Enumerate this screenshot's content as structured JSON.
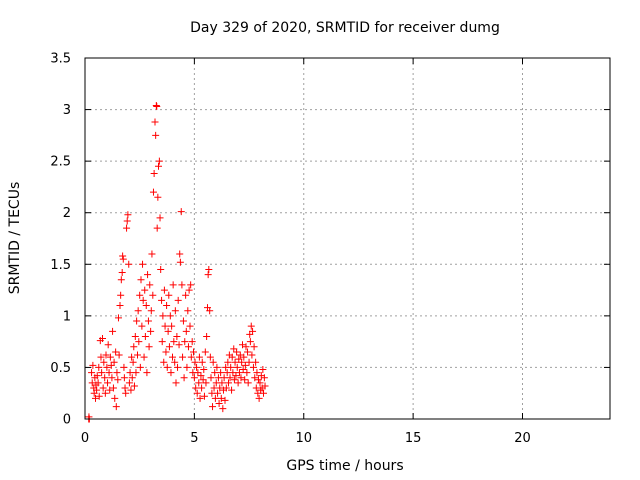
{
  "chart_data": {
    "type": "scatter",
    "title": "Day 329 of 2020, SRMTID for receiver dumg",
    "xlabel": "GPS time / hours",
    "ylabel": "SRMTID / TECUs",
    "xlim": [
      0,
      24
    ],
    "ylim": [
      0,
      3.5
    ],
    "xticks": [
      0,
      5,
      10,
      15,
      20
    ],
    "xtick_labels": [
      "0",
      "5",
      "10",
      "15",
      "20"
    ],
    "yticks": [
      0,
      0.5,
      1,
      1.5,
      2,
      2.5,
      3,
      3.5
    ],
    "ytick_labels": [
      "0",
      "0.5",
      "1",
      "1.5",
      "2",
      "2.5",
      "3",
      "3.5"
    ],
    "grid": true,
    "marker": "+",
    "colors": {
      "series": "#ff0000",
      "grid": "#a0a0a0",
      "axis": "#000000"
    },
    "series": [
      {
        "name": "SRMTID",
        "points": [
          [
            0.17,
            0.0
          ],
          [
            0.18,
            0.02
          ],
          [
            0.2,
            0.0
          ],
          [
            0.3,
            0.45
          ],
          [
            0.33,
            0.35
          ],
          [
            0.36,
            0.52
          ],
          [
            0.4,
            0.3
          ],
          [
            0.42,
            0.25
          ],
          [
            0.45,
            0.4
          ],
          [
            0.48,
            0.2
          ],
          [
            0.5,
            0.33
          ],
          [
            0.53,
            0.28
          ],
          [
            0.56,
            0.42
          ],
          [
            0.6,
            0.35
          ],
          [
            0.63,
            0.5
          ],
          [
            0.65,
            0.22
          ],
          [
            0.7,
            0.76
          ],
          [
            0.73,
            0.6
          ],
          [
            0.76,
            0.45
          ],
          [
            0.8,
            0.78
          ],
          [
            0.83,
            0.3
          ],
          [
            0.86,
            0.55
          ],
          [
            0.9,
            0.4
          ],
          [
            0.93,
            0.25
          ],
          [
            0.96,
            0.62
          ],
          [
            1.0,
            0.5
          ],
          [
            1.03,
            0.35
          ],
          [
            1.06,
            0.72
          ],
          [
            1.1,
            0.45
          ],
          [
            1.13,
            0.28
          ],
          [
            1.16,
            0.6
          ],
          [
            1.2,
            0.52
          ],
          [
            1.23,
            0.4
          ],
          [
            1.26,
            0.85
          ],
          [
            1.3,
            0.3
          ],
          [
            1.33,
            0.55
          ],
          [
            1.36,
            0.2
          ],
          [
            1.4,
            0.65
          ],
          [
            1.43,
            0.12
          ],
          [
            1.46,
            0.45
          ],
          [
            1.5,
            0.38
          ],
          [
            1.53,
            0.98
          ],
          [
            1.56,
            0.62
          ],
          [
            1.6,
            1.1
          ],
          [
            1.63,
            1.2
          ],
          [
            1.66,
            1.35
          ],
          [
            1.7,
            1.42
          ],
          [
            1.72,
            1.58
          ],
          [
            1.75,
            1.55
          ],
          [
            1.78,
            0.5
          ],
          [
            1.8,
            0.4
          ],
          [
            1.83,
            0.3
          ],
          [
            1.86,
            0.25
          ],
          [
            1.9,
            1.85
          ],
          [
            1.93,
            1.92
          ],
          [
            1.96,
            1.98
          ],
          [
            2.0,
            1.5
          ],
          [
            2.03,
            0.35
          ],
          [
            2.06,
            0.45
          ],
          [
            2.1,
            0.28
          ],
          [
            2.13,
            0.6
          ],
          [
            2.16,
            0.4
          ],
          [
            2.2,
            0.55
          ],
          [
            2.23,
            0.7
          ],
          [
            2.26,
            0.32
          ],
          [
            2.3,
            0.8
          ],
          [
            2.33,
            0.45
          ],
          [
            2.36,
            0.95
          ],
          [
            2.4,
            0.62
          ],
          [
            2.43,
            1.05
          ],
          [
            2.46,
            0.75
          ],
          [
            2.5,
            1.2
          ],
          [
            2.53,
            0.5
          ],
          [
            2.56,
            1.35
          ],
          [
            2.6,
            0.9
          ],
          [
            2.63,
            1.5
          ],
          [
            2.66,
            1.15
          ],
          [
            2.7,
            0.6
          ],
          [
            2.73,
            1.25
          ],
          [
            2.76,
            0.8
          ],
          [
            2.8,
            1.1
          ],
          [
            2.83,
            0.45
          ],
          [
            2.86,
            1.4
          ],
          [
            2.9,
            0.95
          ],
          [
            2.93,
            0.7
          ],
          [
            2.96,
            1.3
          ],
          [
            3.0,
            0.85
          ],
          [
            3.03,
            1.05
          ],
          [
            3.06,
            1.6
          ],
          [
            3.1,
            1.2
          ],
          [
            3.13,
            2.2
          ],
          [
            3.16,
            2.38
          ],
          [
            3.2,
            2.88
          ],
          [
            3.23,
            2.75
          ],
          [
            3.26,
            3.04
          ],
          [
            3.28,
            3.03
          ],
          [
            3.3,
            1.85
          ],
          [
            3.33,
            2.15
          ],
          [
            3.36,
            2.45
          ],
          [
            3.4,
            2.5
          ],
          [
            3.43,
            1.95
          ],
          [
            3.46,
            1.45
          ],
          [
            3.5,
            1.15
          ],
          [
            3.53,
            0.75
          ],
          [
            3.56,
            1.0
          ],
          [
            3.6,
            0.55
          ],
          [
            3.63,
            1.25
          ],
          [
            3.66,
            0.9
          ],
          [
            3.7,
            0.65
          ],
          [
            3.73,
            1.1
          ],
          [
            3.76,
            0.5
          ],
          [
            3.8,
            0.85
          ],
          [
            3.83,
            1.2
          ],
          [
            3.86,
            0.7
          ],
          [
            3.9,
            1.0
          ],
          [
            3.93,
            0.45
          ],
          [
            3.96,
            0.9
          ],
          [
            4.0,
            0.6
          ],
          [
            4.03,
            1.3
          ],
          [
            4.06,
            0.75
          ],
          [
            4.1,
            0.55
          ],
          [
            4.13,
            1.05
          ],
          [
            4.16,
            0.35
          ],
          [
            4.2,
            0.8
          ],
          [
            4.23,
            0.5
          ],
          [
            4.26,
            1.15
          ],
          [
            4.3,
            0.72
          ],
          [
            4.33,
            1.6
          ],
          [
            4.36,
            1.52
          ],
          [
            4.4,
            2.01
          ],
          [
            4.43,
            1.3
          ],
          [
            4.46,
            0.6
          ],
          [
            4.5,
            0.95
          ],
          [
            4.53,
            0.4
          ],
          [
            4.56,
            0.75
          ],
          [
            4.6,
            1.2
          ],
          [
            4.63,
            0.85
          ],
          [
            4.66,
            0.5
          ],
          [
            4.7,
            1.05
          ],
          [
            4.73,
            0.7
          ],
          [
            4.76,
            1.25
          ],
          [
            4.8,
            0.9
          ],
          [
            4.83,
            1.3
          ],
          [
            4.86,
            0.6
          ],
          [
            4.9,
            0.75
          ],
          [
            4.93,
            0.45
          ],
          [
            4.96,
            0.65
          ],
          [
            5.0,
            0.4
          ],
          [
            5.03,
            0.55
          ],
          [
            5.06,
            0.3
          ],
          [
            5.1,
            0.5
          ],
          [
            5.13,
            0.25
          ],
          [
            5.16,
            0.45
          ],
          [
            5.2,
            0.35
          ],
          [
            5.23,
            0.6
          ],
          [
            5.26,
            0.2
          ],
          [
            5.3,
            0.42
          ],
          [
            5.33,
            0.3
          ],
          [
            5.36,
            0.55
          ],
          [
            5.4,
            0.38
          ],
          [
            5.43,
            0.48
          ],
          [
            5.46,
            0.22
          ],
          [
            5.5,
            0.65
          ],
          [
            5.53,
            0.35
          ],
          [
            5.56,
            0.8
          ],
          [
            5.6,
            1.08
          ],
          [
            5.63,
            1.4
          ],
          [
            5.66,
            1.45
          ],
          [
            5.7,
            1.05
          ],
          [
            5.73,
            0.6
          ],
          [
            5.76,
            0.4
          ],
          [
            5.8,
            0.25
          ],
          [
            5.83,
            0.12
          ],
          [
            5.86,
            0.55
          ],
          [
            5.9,
            0.3
          ],
          [
            5.93,
            0.45
          ],
          [
            5.96,
            0.2
          ],
          [
            6.0,
            0.35
          ],
          [
            6.03,
            0.5
          ],
          [
            6.06,
            0.25
          ],
          [
            6.1,
            0.4
          ],
          [
            6.13,
            0.15
          ],
          [
            6.16,
            0.3
          ],
          [
            6.2,
            0.45
          ],
          [
            6.23,
            0.2
          ],
          [
            6.26,
            0.35
          ],
          [
            6.3,
            0.1
          ],
          [
            6.33,
            0.28
          ],
          [
            6.36,
            0.4
          ],
          [
            6.4,
            0.18
          ],
          [
            6.43,
            0.5
          ],
          [
            6.46,
            0.3
          ],
          [
            6.5,
            0.45
          ],
          [
            6.53,
            0.55
          ],
          [
            6.56,
            0.35
          ],
          [
            6.6,
            0.62
          ],
          [
            6.63,
            0.4
          ],
          [
            6.66,
            0.5
          ],
          [
            6.7,
            0.28
          ],
          [
            6.73,
            0.6
          ],
          [
            6.76,
            0.45
          ],
          [
            6.8,
            0.68
          ],
          [
            6.83,
            0.38
          ],
          [
            6.86,
            0.55
          ],
          [
            6.9,
            0.42
          ],
          [
            6.93,
            0.65
          ],
          [
            6.96,
            0.5
          ],
          [
            7.0,
            0.35
          ],
          [
            7.03,
            0.58
          ],
          [
            7.06,
            0.45
          ],
          [
            7.1,
            0.62
          ],
          [
            7.13,
            0.4
          ],
          [
            7.16,
            0.55
          ],
          [
            7.2,
            0.72
          ],
          [
            7.23,
            0.48
          ],
          [
            7.26,
            0.6
          ],
          [
            7.3,
            0.38
          ],
          [
            7.33,
            0.52
          ],
          [
            7.36,
            0.7
          ],
          [
            7.4,
            0.45
          ],
          [
            7.43,
            0.65
          ],
          [
            7.46,
            0.35
          ],
          [
            7.5,
            0.55
          ],
          [
            7.53,
            0.82
          ],
          [
            7.56,
            0.75
          ],
          [
            7.6,
            0.9
          ],
          [
            7.63,
            0.62
          ],
          [
            7.66,
            0.85
          ],
          [
            7.7,
            0.5
          ],
          [
            7.73,
            0.7
          ],
          [
            7.76,
            0.4
          ],
          [
            7.8,
            0.55
          ],
          [
            7.83,
            0.3
          ],
          [
            7.86,
            0.45
          ],
          [
            7.9,
            0.25
          ],
          [
            7.93,
            0.38
          ],
          [
            7.96,
            0.2
          ],
          [
            8.0,
            0.35
          ],
          [
            8.03,
            0.28
          ],
          [
            8.06,
            0.42
          ],
          [
            8.1,
            0.3
          ],
          [
            8.13,
            0.48
          ],
          [
            8.16,
            0.25
          ],
          [
            8.2,
            0.4
          ],
          [
            8.23,
            0.32
          ]
        ]
      }
    ]
  }
}
